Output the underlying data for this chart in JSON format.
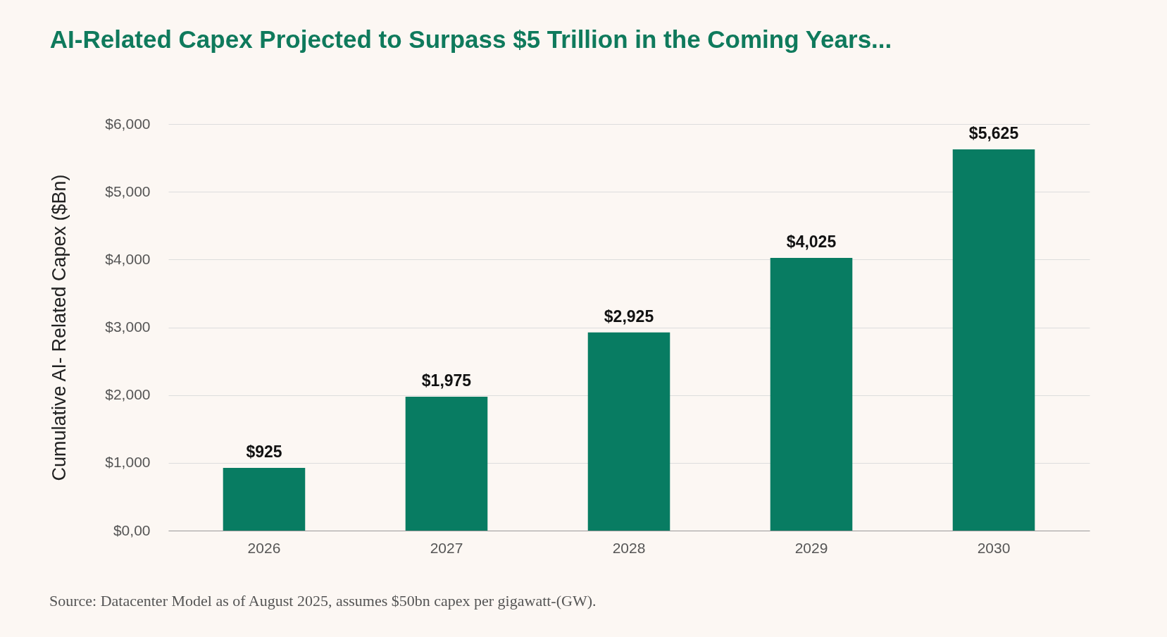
{
  "chart_data": {
    "type": "bar",
    "title": "AI-Related Capex Projected to Surpass $5 Trillion in the Coming Years...",
    "ylabel": "Cumulative AI- Related Capex ($Bn)",
    "categories": [
      "2026",
      "2027",
      "2028",
      "2029",
      "2030"
    ],
    "values": [
      925,
      1975,
      2925,
      4025,
      5625
    ],
    "value_labels": [
      "$925",
      "$1,975",
      "$2,925",
      "$4,025",
      "$5,625"
    ],
    "color": "#087c62",
    "ylim": [
      0,
      6000
    ],
    "yticks": [
      {
        "value": 0,
        "label": "$0,00"
      },
      {
        "value": 1000,
        "label": "$1,000"
      },
      {
        "value": 2000,
        "label": "$2,000"
      },
      {
        "value": 3000,
        "label": "$3,000"
      },
      {
        "value": 4000,
        "label": "$4,000"
      },
      {
        "value": 5000,
        "label": "$5,000"
      },
      {
        "value": 6000,
        "label": "$6,000"
      }
    ],
    "grid": "y",
    "annotations": [
      "Source: Datacenter Model as of August 2025, assumes $50bn capex per gigawatt-(GW)."
    ]
  }
}
